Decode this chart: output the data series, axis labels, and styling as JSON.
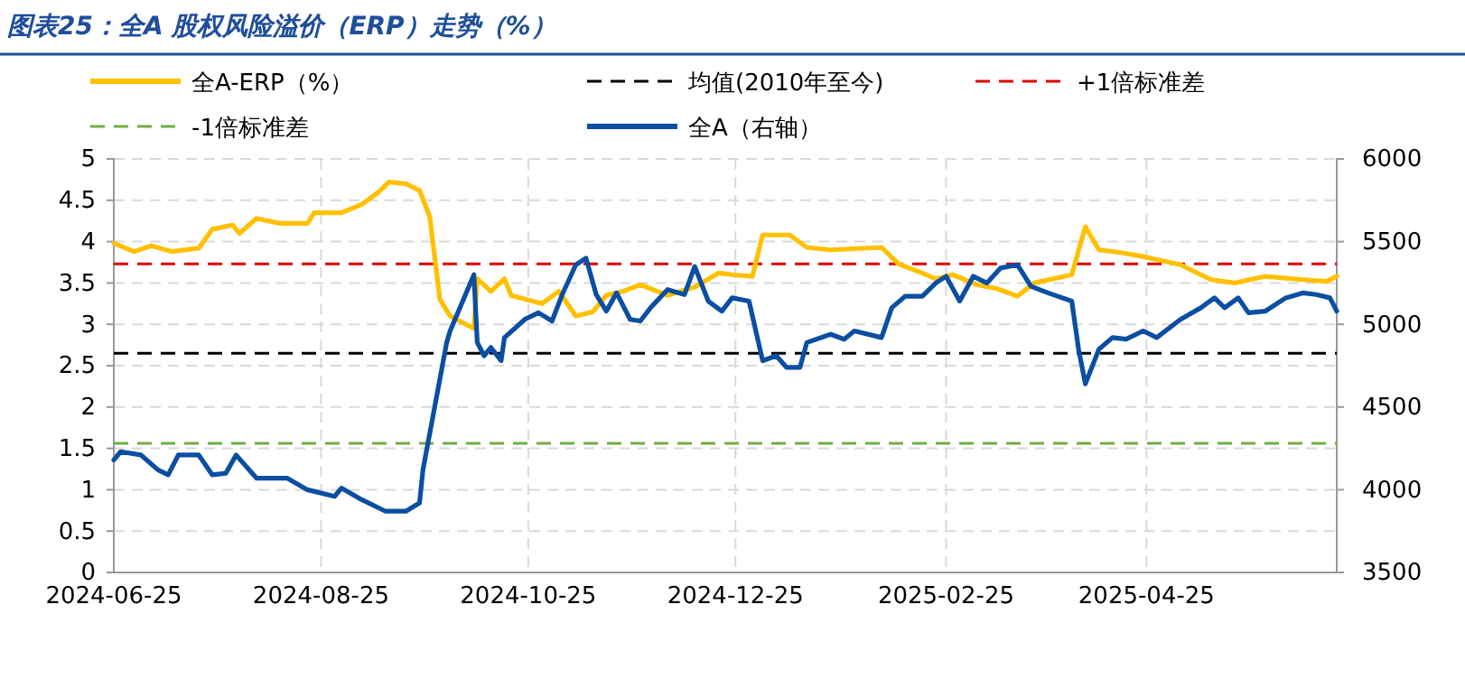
{
  "chart_data": {
    "type": "line",
    "title": "图表25：全A 股权风险溢价（ERP）走势（%）",
    "xlim": [
      "2024-06-25",
      "2025-06-20"
    ],
    "xticks": [
      "2024-06-25",
      "2024-08-25",
      "2024-10-25",
      "2024-12-25",
      "2025-02-25",
      "2025-04-25"
    ],
    "ylim": [
      0,
      5
    ],
    "yticks": [
      0,
      0.5,
      1,
      1.5,
      2,
      2.5,
      3,
      3.5,
      4,
      4.5,
      5
    ],
    "y2lim": [
      3500,
      6000
    ],
    "y2ticks": [
      3500,
      4000,
      4500,
      5000,
      5500,
      6000
    ],
    "grid": true,
    "legend": "top",
    "line_style": "solid",
    "ref_lines": [
      {
        "axis": "y",
        "value": 2.65,
        "label": "均值(2010年至今)",
        "color": "#000000",
        "line_style": "dashed"
      },
      {
        "axis": "y",
        "value": 3.73,
        "label": "+1倍标准差",
        "color": "#e00000",
        "line_style": "dashed"
      },
      {
        "axis": "y",
        "value": 1.56,
        "label": "-1倍标准差",
        "color": "#70ad47",
        "line_style": "dashed"
      }
    ],
    "series": [
      {
        "name": "全A-ERP（%）",
        "color": "#ffc000",
        "x": [
          "2024-06-25",
          "2024-07-01",
          "2024-07-06",
          "2024-07-12",
          "2024-07-20",
          "2024-07-24",
          "2024-07-30",
          "2024-08-01",
          "2024-08-06",
          "2024-08-13",
          "2024-08-21",
          "2024-08-23",
          "2024-08-31",
          "2024-09-06",
          "2024-09-11",
          "2024-09-14",
          "2024-09-19",
          "2024-09-23",
          "2024-09-26",
          "2024-09-29",
          "2024-10-02",
          "2024-10-09",
          "2024-10-10",
          "2024-10-14",
          "2024-10-18",
          "2024-10-20",
          "2024-10-29",
          "2024-11-03",
          "2024-11-08",
          "2024-11-13",
          "2024-11-17",
          "2024-11-22",
          "2024-11-27",
          "2024-12-05",
          "2024-12-13",
          "2024-12-20",
          "2024-12-24",
          "2024-12-30",
          "2025-01-02",
          "2025-01-10",
          "2025-01-15",
          "2025-01-22",
          "2025-02-06",
          "2025-02-11",
          "2025-02-18",
          "2025-02-22",
          "2025-02-27",
          "2025-03-06",
          "2025-03-12",
          "2025-03-18",
          "2025-03-23",
          "2025-04-03",
          "2025-04-07",
          "2025-04-11",
          "2025-04-17",
          "2025-04-24",
          "2025-05-05",
          "2025-05-14",
          "2025-05-21",
          "2025-05-30",
          "2025-06-10",
          "2025-06-17",
          "2025-06-20"
        ],
        "values": [
          3.98,
          3.88,
          3.95,
          3.88,
          3.92,
          4.15,
          4.2,
          4.1,
          4.28,
          4.22,
          4.22,
          4.35,
          4.35,
          4.45,
          4.6,
          4.72,
          4.7,
          4.62,
          4.3,
          3.3,
          3.1,
          2.95,
          3.55,
          3.4,
          3.55,
          3.35,
          3.25,
          3.4,
          3.1,
          3.15,
          3.35,
          3.4,
          3.48,
          3.35,
          3.45,
          3.62,
          3.6,
          3.58,
          4.08,
          4.08,
          3.93,
          3.9,
          3.93,
          3.73,
          3.62,
          3.55,
          3.6,
          3.48,
          3.43,
          3.34,
          3.5,
          3.6,
          4.18,
          3.9,
          3.87,
          3.82,
          3.72,
          3.54,
          3.5,
          3.58,
          3.54,
          3.52,
          3.58
        ]
      },
      {
        "name": "全A（右轴）",
        "color": "#0b4ea2",
        "axis": "y2",
        "x": [
          "2024-06-25",
          "2024-06-27",
          "2024-07-03",
          "2024-07-08",
          "2024-07-11",
          "2024-07-14",
          "2024-07-20",
          "2024-07-24",
          "2024-07-28",
          "2024-07-31",
          "2024-08-06",
          "2024-08-15",
          "2024-08-21",
          "2024-08-29",
          "2024-08-31",
          "2024-09-06",
          "2024-09-13",
          "2024-09-19",
          "2024-09-23",
          "2024-09-24",
          "2024-09-27",
          "2024-10-01",
          "2024-10-02",
          "2024-10-09",
          "2024-10-10",
          "2024-10-12",
          "2024-10-14",
          "2024-10-17",
          "2024-10-18",
          "2024-10-24",
          "2024-10-28",
          "2024-11-01",
          "2024-11-04",
          "2024-11-08",
          "2024-11-11",
          "2024-11-14",
          "2024-11-17",
          "2024-11-20",
          "2024-11-24",
          "2024-11-27",
          "2024-11-30",
          "2024-12-05",
          "2024-12-10",
          "2024-12-13",
          "2024-12-17",
          "2024-12-21",
          "2024-12-24",
          "2024-12-29",
          "2025-01-02",
          "2025-01-06",
          "2025-01-09",
          "2025-01-13",
          "2025-01-15",
          "2025-01-22",
          "2025-01-26",
          "2025-01-29",
          "2025-02-06",
          "2025-02-09",
          "2025-02-13",
          "2025-02-18",
          "2025-02-22",
          "2025-02-25",
          "2025-03-01",
          "2025-03-05",
          "2025-03-09",
          "2025-03-13",
          "2025-03-18",
          "2025-03-22",
          "2025-03-27",
          "2025-04-03",
          "2025-04-05",
          "2025-04-07",
          "2025-04-11",
          "2025-04-15",
          "2025-04-19",
          "2025-04-24",
          "2025-04-28",
          "2025-05-05",
          "2025-05-11",
          "2025-05-15",
          "2025-05-18",
          "2025-05-22",
          "2025-05-25",
          "2025-05-30",
          "2025-06-05",
          "2025-06-10",
          "2025-06-14",
          "2025-06-18",
          "2025-06-20"
        ],
        "values": [
          4180,
          4230,
          4210,
          4120,
          4090,
          4210,
          4210,
          4090,
          4100,
          4210,
          4070,
          4070,
          4000,
          3960,
          4010,
          3940,
          3870,
          3870,
          3920,
          4120,
          4450,
          4890,
          4960,
          5300,
          4890,
          4810,
          4860,
          4780,
          4920,
          5030,
          5070,
          5020,
          5180,
          5360,
          5400,
          5180,
          5080,
          5190,
          5030,
          5020,
          5100,
          5210,
          5180,
          5350,
          5140,
          5080,
          5160,
          5140,
          4780,
          4810,
          4740,
          4740,
          4890,
          4940,
          4910,
          4960,
          4920,
          5100,
          5170,
          5170,
          5250,
          5290,
          5140,
          5290,
          5250,
          5340,
          5360,
          5230,
          5190,
          5140,
          4850,
          4640,
          4850,
          4920,
          4910,
          4960,
          4920,
          5030,
          5100,
          5160,
          5100,
          5160,
          5070,
          5080,
          5160,
          5190,
          5180,
          5160,
          5080
        ]
      }
    ]
  }
}
